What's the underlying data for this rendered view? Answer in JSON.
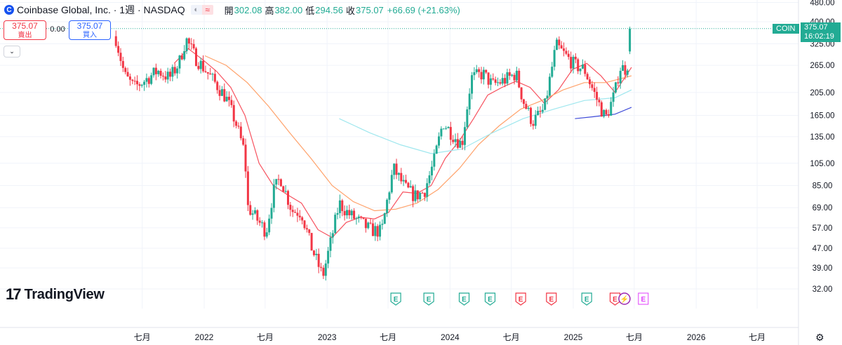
{
  "header": {
    "logo_letter": "C",
    "title": "Coinbase Global, Inc. · 1週 · NASDAQ",
    "eye_icon": "eye-off-icon",
    "wave_icon": "≈",
    "ohlc": {
      "open_label": "開",
      "open": "302.08",
      "high_label": "高",
      "high": "382.00",
      "low_label": "低",
      "low": "294.56",
      "close_label": "收",
      "close": "375.07",
      "change": "+66.69 (+21.63%)"
    }
  },
  "trade": {
    "sell_price": "375.07",
    "sell_label": "賣出",
    "spread": "0.00",
    "buy_price": "375.07",
    "buy_label": "買入",
    "collapse_icon": "chevron-down-icon"
  },
  "brand": {
    "name": "TradingView",
    "mark": "17"
  },
  "price_badge": {
    "symbol": "COIN",
    "price": "375.07",
    "countdown": "16:02:19"
  },
  "colors": {
    "up": "#22ab94",
    "down": "#f23645",
    "ma_fast": "#f7525f",
    "ma_mid": "#ffa26b",
    "ma_slow": "#9fe7ee",
    "ma_longest": "#3d49d8",
    "earnings_beat": "#22ab94",
    "earnings_miss": "#f23645",
    "earnings_future": "#e040fb"
  },
  "chart_data": {
    "type": "candlestick",
    "scale": "log",
    "y_ticks": [
      480,
      400,
      325,
      265,
      205,
      165,
      135,
      105,
      85,
      69,
      57,
      47,
      39,
      32
    ],
    "y_tick_labels": [
      "480.00",
      "400.00",
      "325.00",
      "265.00",
      "205.00",
      "165.00",
      "135.00",
      "105.00",
      "85.00",
      "69.00",
      "57.00",
      "47.00",
      "39.00",
      "32.00"
    ],
    "x_labels": [
      {
        "date": "2021-07-01",
        "label": "七月"
      },
      {
        "date": "2022-01-01",
        "label": "2022"
      },
      {
        "date": "2022-07-01",
        "label": "七月"
      },
      {
        "date": "2023-01-01",
        "label": "2023"
      },
      {
        "date": "2023-07-01",
        "label": "七月"
      },
      {
        "date": "2024-01-01",
        "label": "2024"
      },
      {
        "date": "2024-07-01",
        "label": "七月"
      },
      {
        "date": "2025-01-01",
        "label": "2025"
      },
      {
        "date": "2025-07-01",
        "label": "七月"
      },
      {
        "date": "2026-01-01",
        "label": "2026"
      },
      {
        "date": "2026-07-01",
        "label": "七月"
      }
    ],
    "last_price": 375.07,
    "close_path": [
      [
        "2021-04-14",
        342
      ],
      [
        "2021-05-10",
        240
      ],
      [
        "2021-06-07",
        215
      ],
      [
        "2021-07-05",
        228
      ],
      [
        "2021-08-16",
        252
      ],
      [
        "2021-09-20",
        235
      ],
      [
        "2021-10-18",
        270
      ],
      [
        "2021-11-08",
        340
      ],
      [
        "2021-12-06",
        285
      ],
      [
        "2022-01-03",
        255
      ],
      [
        "2022-02-07",
        220
      ],
      [
        "2022-03-07",
        195
      ],
      [
        "2022-04-04",
        155
      ],
      [
        "2022-05-02",
        115
      ],
      [
        "2022-05-09",
        70
      ],
      [
        "2022-06-06",
        62
      ],
      [
        "2022-07-04",
        55
      ],
      [
        "2022-07-25",
        80
      ],
      [
        "2022-08-15",
        92
      ],
      [
        "2022-09-19",
        67
      ],
      [
        "2022-10-17",
        66
      ],
      [
        "2022-11-14",
        48
      ],
      [
        "2022-12-19",
        36
      ],
      [
        "2023-01-09",
        48
      ],
      [
        "2023-02-06",
        72
      ],
      [
        "2023-03-06",
        65
      ],
      [
        "2023-04-10",
        60
      ],
      [
        "2023-05-08",
        56
      ],
      [
        "2023-06-12",
        55
      ],
      [
        "2023-07-03",
        80
      ],
      [
        "2023-07-17",
        100
      ],
      [
        "2023-08-21",
        83
      ],
      [
        "2023-09-18",
        77
      ],
      [
        "2023-10-16",
        80
      ],
      [
        "2023-11-13",
        105
      ],
      [
        "2023-12-11",
        155
      ],
      [
        "2024-01-08",
        138
      ],
      [
        "2024-02-05",
        125
      ],
      [
        "2024-03-04",
        235
      ],
      [
        "2024-04-08",
        245
      ],
      [
        "2024-05-06",
        220
      ],
      [
        "2024-06-10",
        230
      ],
      [
        "2024-07-15",
        245
      ],
      [
        "2024-08-05",
        190
      ],
      [
        "2024-09-02",
        155
      ],
      [
        "2024-10-07",
        175
      ],
      [
        "2024-11-11",
        320
      ],
      [
        "2024-12-09",
        290
      ],
      [
        "2025-01-06",
        265
      ],
      [
        "2025-02-03",
        255
      ],
      [
        "2025-03-10",
        195
      ],
      [
        "2025-04-07",
        160
      ],
      [
        "2025-05-05",
        205
      ],
      [
        "2025-05-19",
        260
      ],
      [
        "2025-06-09",
        255
      ],
      [
        "2025-06-16",
        302
      ],
      [
        "2025-06-23",
        375.07
      ]
    ],
    "series": [
      {
        "name": "",
        "color": "#f7525f",
        "points": [
          [
            "2021-10-04",
            270
          ],
          [
            "2021-11-15",
            310
          ],
          [
            "2021-12-27",
            280
          ],
          [
            "2022-02-07",
            250
          ],
          [
            "2022-03-21",
            215
          ],
          [
            "2022-05-02",
            165
          ],
          [
            "2022-06-13",
            105
          ],
          [
            "2022-07-25",
            85
          ],
          [
            "2022-09-05",
            78
          ],
          [
            "2022-10-17",
            72
          ],
          [
            "2022-12-05",
            56
          ],
          [
            "2023-01-16",
            52
          ],
          [
            "2023-02-27",
            60
          ],
          [
            "2023-04-10",
            63
          ],
          [
            "2023-05-22",
            62
          ],
          [
            "2023-07-03",
            66
          ],
          [
            "2023-08-14",
            80
          ],
          [
            "2023-09-25",
            79
          ],
          [
            "2023-11-06",
            85
          ],
          [
            "2023-12-18",
            110
          ],
          [
            "2024-01-29",
            130
          ],
          [
            "2024-03-11",
            160
          ],
          [
            "2024-04-22",
            200
          ],
          [
            "2024-06-03",
            215
          ],
          [
            "2024-07-15",
            228
          ],
          [
            "2024-08-26",
            215
          ],
          [
            "2024-10-07",
            185
          ],
          [
            "2024-11-18",
            210
          ],
          [
            "2024-12-30",
            255
          ],
          [
            "2025-02-10",
            270
          ],
          [
            "2025-03-24",
            240
          ],
          [
            "2025-05-05",
            205
          ],
          [
            "2025-06-23",
            260
          ]
        ]
      },
      {
        "name": "",
        "color": "#ffa26b",
        "points": [
          [
            "2022-01-03",
            290
          ],
          [
            "2022-03-07",
            265
          ],
          [
            "2022-05-09",
            225
          ],
          [
            "2022-07-11",
            180
          ],
          [
            "2022-09-12",
            140
          ],
          [
            "2022-11-14",
            110
          ],
          [
            "2023-01-16",
            85
          ],
          [
            "2023-03-20",
            73
          ],
          [
            "2023-05-22",
            67
          ],
          [
            "2023-07-24",
            68
          ],
          [
            "2023-09-25",
            72
          ],
          [
            "2023-11-27",
            82
          ],
          [
            "2024-01-29",
            100
          ],
          [
            "2024-03-25",
            125
          ],
          [
            "2024-05-27",
            150
          ],
          [
            "2024-07-29",
            175
          ],
          [
            "2024-09-30",
            190
          ],
          [
            "2024-12-02",
            210
          ],
          [
            "2025-02-03",
            225
          ],
          [
            "2025-04-07",
            225
          ],
          [
            "2025-06-23",
            240
          ]
        ]
      },
      {
        "name": "",
        "color": "#9fe7ee",
        "points": [
          [
            "2023-02-06",
            160
          ],
          [
            "2023-05-08",
            140
          ],
          [
            "2023-08-07",
            125
          ],
          [
            "2023-11-06",
            115
          ],
          [
            "2024-02-05",
            120
          ],
          [
            "2024-05-06",
            140
          ],
          [
            "2024-08-05",
            160
          ],
          [
            "2024-11-04",
            175
          ],
          [
            "2025-02-03",
            190
          ],
          [
            "2025-05-05",
            195
          ],
          [
            "2025-06-23",
            210
          ]
        ]
      },
      {
        "name": "",
        "color": "#3d49d8",
        "points": [
          [
            "2025-01-06",
            160
          ],
          [
            "2025-03-03",
            163
          ],
          [
            "2025-05-05",
            167
          ],
          [
            "2025-06-23",
            178
          ]
        ]
      }
    ],
    "earnings": [
      {
        "date": "2023-07-24",
        "label": "E",
        "kind": "beat"
      },
      {
        "date": "2023-10-30",
        "label": "E",
        "kind": "beat"
      },
      {
        "date": "2024-02-12",
        "label": "E",
        "kind": "beat"
      },
      {
        "date": "2024-04-29",
        "label": "E",
        "kind": "beat"
      },
      {
        "date": "2024-07-29",
        "label": "E",
        "kind": "miss"
      },
      {
        "date": "2024-10-28",
        "label": "E",
        "kind": "miss"
      },
      {
        "date": "2025-02-10",
        "label": "E",
        "kind": "beat"
      },
      {
        "date": "2025-05-05",
        "label": "E",
        "kind": "miss"
      },
      {
        "date": "2025-06-02",
        "label": "⚡",
        "kind": "event"
      },
      {
        "date": "2025-07-28",
        "label": "E",
        "kind": "future"
      }
    ]
  }
}
